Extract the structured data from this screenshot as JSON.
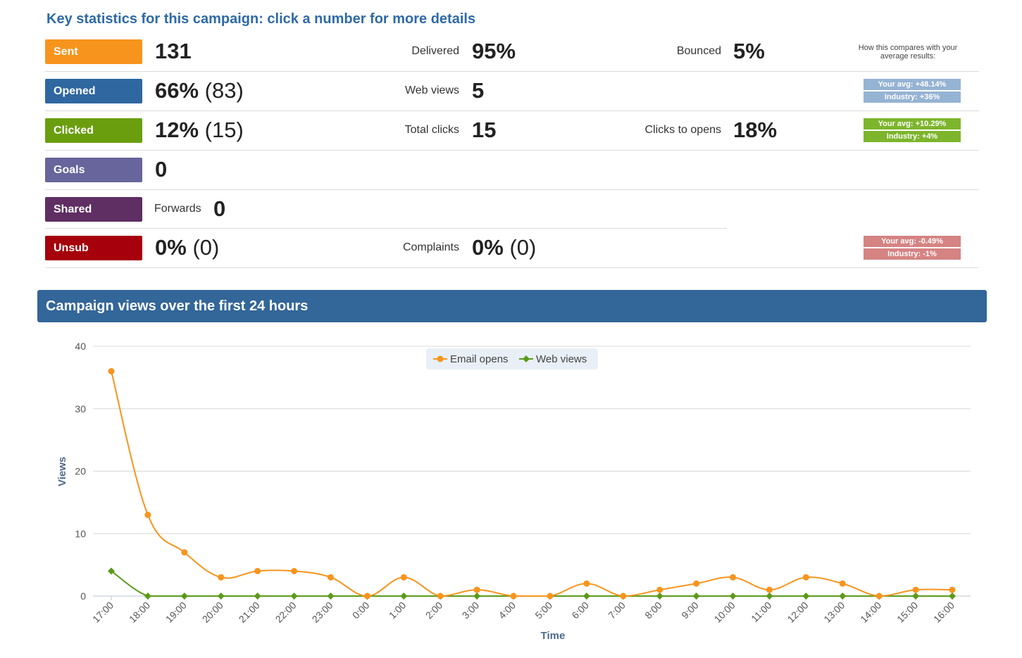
{
  "heading": "Key statistics for this campaign: click a number for more details",
  "compare_heading": "How this compares with your average results:",
  "rows": [
    {
      "badge": "Sent",
      "badge_color": "#f7941d",
      "value": "131",
      "value_paren": "",
      "mid_label": "Delivered",
      "mid_value": "95%",
      "mid_paren": "",
      "right_label": "Bounced",
      "right_value": "5%",
      "right_paren": ""
    },
    {
      "badge": "Opened",
      "badge_color": "#2f67a0",
      "value": "66%",
      "value_paren": "(83)",
      "mid_label": "Web views",
      "mid_value": "5",
      "mid_paren": "",
      "right_label": "",
      "right_value": "",
      "right_paren": ""
    },
    {
      "badge": "Clicked",
      "badge_color": "#6a9e0f",
      "value": "12%",
      "value_paren": "(15)",
      "mid_label": "Total clicks",
      "mid_value": "15",
      "mid_paren": "",
      "right_label": "Clicks to opens",
      "right_value": "18%",
      "right_paren": ""
    },
    {
      "badge": "Goals",
      "badge_color": "#67659b",
      "value": "0",
      "value_paren": "",
      "mid_label": "",
      "mid_value": "",
      "mid_paren": "",
      "right_label": "",
      "right_value": "",
      "right_paren": ""
    },
    {
      "badge": "Shared",
      "badge_color": "#5f2e63",
      "value": "",
      "value_paren": "",
      "inline_label": "Forwards",
      "inline_value": "0",
      "mid_label": "",
      "mid_value": "",
      "mid_paren": "",
      "right_label": "",
      "right_value": "",
      "right_paren": ""
    },
    {
      "badge": "Unsub",
      "badge_color": "#a5000b",
      "value": "0%",
      "value_paren": "(0)",
      "mid_label": "Complaints",
      "mid_value": "0%",
      "mid_paren": "(0)",
      "right_label": "",
      "right_value": "",
      "right_paren": ""
    }
  ],
  "comparisons": {
    "opened": {
      "your_avg": "Your avg: +48.14%",
      "industry": "Industry: +36%",
      "color": "#95b3d3"
    },
    "clicked": {
      "your_avg": "Your avg: +10.29%",
      "industry": "Industry: +4%",
      "color": "#7db52c"
    },
    "unsub": {
      "your_avg": "Your avg: -0.49%",
      "industry": "Industry: -1%",
      "color": "#d58383"
    }
  },
  "panel_title": "Campaign views over the first 24 hours",
  "chart_data": {
    "type": "line",
    "xlabel": "Time",
    "ylabel": "Views",
    "ylim": [
      0,
      40
    ],
    "yticks": [
      0,
      10,
      20,
      30,
      40
    ],
    "grid": true,
    "legend_position": "top-center",
    "categories": [
      "17:00",
      "18:00",
      "19:00",
      "20:00",
      "21:00",
      "22:00",
      "23:00",
      "0:00",
      "1:00",
      "2:00",
      "3:00",
      "4:00",
      "5:00",
      "6:00",
      "7:00",
      "8:00",
      "9:00",
      "10:00",
      "11:00",
      "12:00",
      "13:00",
      "14:00",
      "15:00",
      "16:00"
    ],
    "series": [
      {
        "name": "Email opens",
        "color": "#f7941d",
        "values": [
          36,
          13,
          7,
          3,
          4,
          4,
          3,
          0,
          3,
          0,
          1,
          0,
          0,
          2,
          0,
          1,
          2,
          3,
          1,
          3,
          2,
          0,
          1,
          1
        ]
      },
      {
        "name": "Web views",
        "color": "#5b9a1a",
        "values": [
          4,
          0,
          0,
          0,
          0,
          0,
          0,
          0,
          0,
          0,
          0,
          0,
          0,
          0,
          0,
          0,
          0,
          0,
          0,
          0,
          0,
          0,
          0,
          0
        ]
      }
    ]
  }
}
